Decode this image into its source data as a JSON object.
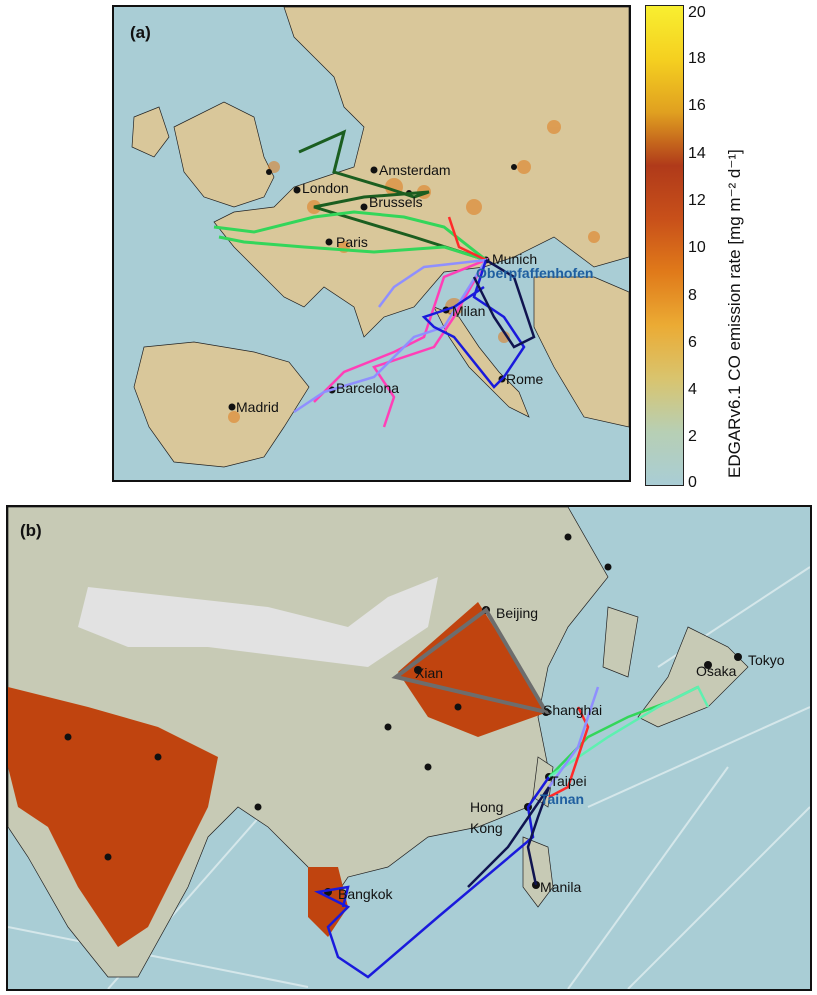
{
  "panels": {
    "a": {
      "label": "(a)",
      "cities": [
        "Amsterdam",
        "London",
        "Brussels",
        "Paris",
        "Munich",
        "Oberpfaffenhofen",
        "Milan",
        "Barcelona",
        "Madrid",
        "Rome"
      ],
      "site": "Oberpfaffenhofen"
    },
    "b": {
      "label": "(b)",
      "cities": [
        "Beijing",
        "Xian",
        "Shanghai",
        "Osaka",
        "Tokyo",
        "Taipei",
        "Tainan",
        "Hong",
        "Kong",
        "Bangkok",
        "Manila"
      ],
      "site": "Tainan"
    }
  },
  "colorbar": {
    "label": "EDGARv6.1 CO emission rate [mg m⁻² d⁻¹]",
    "ticks": [
      "20",
      "18",
      "16",
      "14",
      "12",
      "10",
      "8",
      "6",
      "4",
      "2",
      "0"
    ],
    "min": 0,
    "max": 20,
    "colors": [
      "#a9cdd5",
      "#b7cfb4",
      "#d9c46e",
      "#ebab34",
      "#e07a1a",
      "#c8501a",
      "#b03a1a",
      "#e0a020",
      "#f5d020",
      "#f8ef30"
    ]
  },
  "flight_colors": [
    "#1b5e20",
    "#33d65a",
    "#ff2a2a",
    "#ff3fb7",
    "#8f8fff",
    "#1a1adc",
    "#101450",
    "#6d6d6d",
    "#5ef0b0"
  ]
}
